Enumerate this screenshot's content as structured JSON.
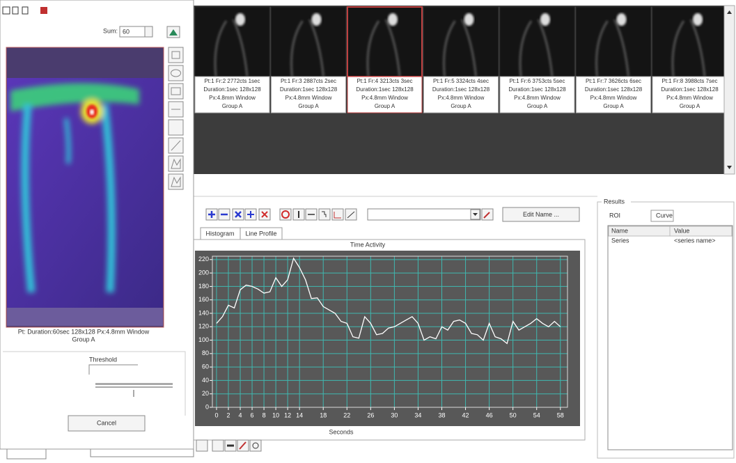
{
  "left_panel": {
    "sum_label": "Sum:",
    "sum_value": "60",
    "image_caption": [
      "Pt: Duration:60sec 128x128 Px:4.8mm Window",
      "Group A"
    ],
    "threshold_label": "Threshold",
    "cancel_button": "Cancel"
  },
  "thumbnails": [
    [
      "Pt:1 Fr:2 2772cts 1sec",
      "Duration:1sec 128x128",
      "Px:4.8mm Window",
      "Group A"
    ],
    [
      "Pt:1 Fr:3 2887cts 2sec",
      "Duration:1sec 128x128",
      "Px:4.8mm Window",
      "Group A"
    ],
    [
      "Pt:1 Fr:4 3213cts 3sec",
      "Duration:1sec 128x128",
      "Px:4.8mm Window",
      "Group A"
    ],
    [
      "Pt:1 Fr:5 3324cts 4sec",
      "Duration:1sec 128x128",
      "Px:4.8mm Window",
      "Group A"
    ],
    [
      "Pt:1 Fr:6 3753cts 5sec",
      "Duration:1sec 128x128",
      "Px:4.8mm Window",
      "Group A"
    ],
    [
      "Pt:1 Fr:7 3626cts 6sec",
      "Duration:1sec 128x128",
      "Px:4.8mm Window",
      "Group A"
    ],
    [
      "Pt:1 Fr:8 3988cts 7sec",
      "Duration:1sec 128x128",
      "Px:4.8mm Window",
      "Group A"
    ]
  ],
  "toolbar": {
    "edit_name_button": "Edit Name ..."
  },
  "tabs": [
    "Histogram",
    "Line Profile"
  ],
  "results": {
    "title": "Results",
    "tabs": [
      "ROI",
      "Curve"
    ],
    "columns": [
      "Name",
      "Value"
    ],
    "rows": [
      [
        "Series",
        "<series name>"
      ]
    ]
  },
  "chart_data": {
    "type": "line",
    "title": "Time Activity",
    "x_label": "Seconds",
    "x": [
      0,
      1,
      2,
      3,
      4,
      5,
      6,
      7,
      8,
      9,
      10,
      11,
      12,
      13,
      14,
      15,
      16,
      17,
      18,
      19,
      20,
      21,
      22,
      23,
      24,
      25,
      26,
      27,
      28,
      29,
      30,
      31,
      32,
      33,
      34,
      35,
      36,
      37,
      38,
      39,
      40,
      41,
      42,
      43,
      44,
      45,
      46,
      47,
      48,
      49,
      50,
      51,
      52,
      53,
      54,
      55,
      56,
      57,
      58
    ],
    "values": [
      125,
      135,
      152,
      148,
      175,
      182,
      180,
      176,
      170,
      172,
      193,
      180,
      190,
      222,
      208,
      190,
      162,
      163,
      150,
      145,
      140,
      128,
      125,
      105,
      103,
      135,
      125,
      108,
      110,
      118,
      120,
      125,
      130,
      135,
      125,
      100,
      105,
      102,
      120,
      115,
      128,
      130,
      125,
      110,
      108,
      100,
      125,
      105,
      102,
      95,
      128,
      115,
      120,
      125,
      132,
      125,
      120,
      128,
      120
    ],
    "color": "#ffffff",
    "xlim": [
      -0.7,
      59.2
    ],
    "xticks": [
      0,
      2,
      4,
      6,
      8,
      10,
      12,
      14,
      18,
      22,
      26,
      30,
      34,
      38,
      42,
      46,
      50,
      54,
      58
    ],
    "ylim": [
      0,
      225
    ],
    "yticks": [
      0,
      20,
      40,
      60,
      80,
      100,
      120,
      140,
      160,
      180,
      200,
      220
    ],
    "grid": true,
    "grid_color": "#3fb8b0",
    "background": "#585858"
  }
}
